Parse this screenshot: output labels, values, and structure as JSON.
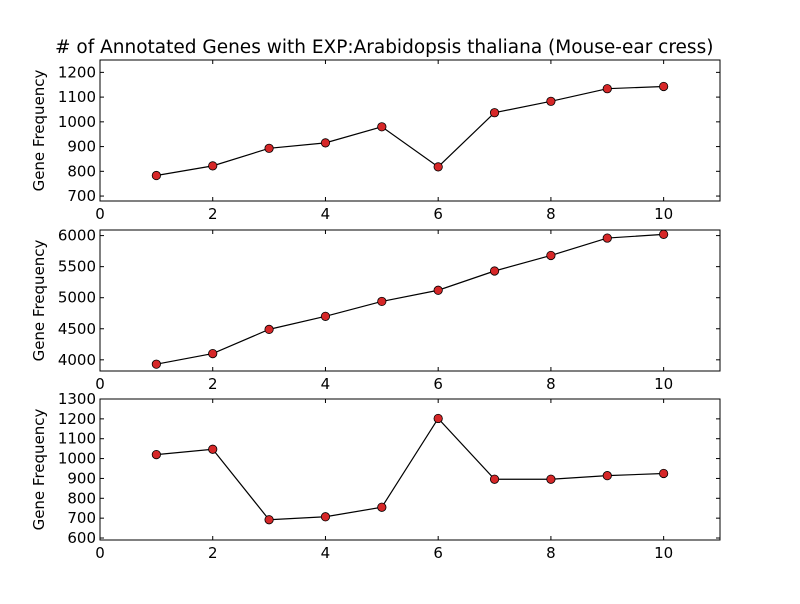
{
  "chart_data": [
    {
      "type": "line",
      "title": "# of Annotated Genes with EXP:Arabidopsis thaliana (Mouse-ear cress)",
      "xlabel": "",
      "ylabel": "Gene Frequency",
      "xlim": [
        0,
        11
      ],
      "ylim": [
        680,
        1250
      ],
      "xticks": [
        0,
        2,
        4,
        6,
        8,
        10
      ],
      "yticks": [
        700,
        800,
        900,
        1000,
        1100,
        1200
      ],
      "grid": false,
      "series": [
        {
          "x": [
            1,
            2,
            3,
            4,
            5,
            6,
            7,
            8,
            9,
            10
          ],
          "values": [
            783,
            822,
            893,
            915,
            980,
            818,
            1037,
            1083,
            1134,
            1143
          ]
        }
      ]
    },
    {
      "type": "line",
      "title": "",
      "xlabel": "",
      "ylabel": "Gene Frequency",
      "xlim": [
        0,
        11
      ],
      "ylim": [
        3820,
        6090
      ],
      "xticks": [
        0,
        2,
        4,
        6,
        8,
        10
      ],
      "yticks": [
        4000,
        4500,
        5000,
        5500,
        6000
      ],
      "grid": false,
      "series": [
        {
          "x": [
            1,
            2,
            3,
            4,
            5,
            6,
            7,
            8,
            9,
            10
          ],
          "values": [
            3930,
            4100,
            4490,
            4700,
            4940,
            5120,
            5430,
            5680,
            5960,
            6020
          ]
        }
      ]
    },
    {
      "type": "line",
      "title": "",
      "xlabel": "",
      "ylabel": "Gene Frequency",
      "xlim": [
        0,
        11
      ],
      "ylim": [
        590,
        1300
      ],
      "xticks": [
        0,
        2,
        4,
        6,
        8,
        10
      ],
      "yticks": [
        600,
        700,
        800,
        900,
        1000,
        1100,
        1200,
        1300
      ],
      "grid": false,
      "series": [
        {
          "x": [
            1,
            2,
            3,
            4,
            5,
            6,
            7,
            8,
            9,
            10
          ],
          "values": [
            1020,
            1047,
            692,
            707,
            755,
            1202,
            896,
            896,
            914,
            925
          ]
        }
      ]
    }
  ],
  "style": {
    "line_color": "#000000",
    "marker_fill": "#d62728",
    "marker_stroke": "#000000"
  }
}
